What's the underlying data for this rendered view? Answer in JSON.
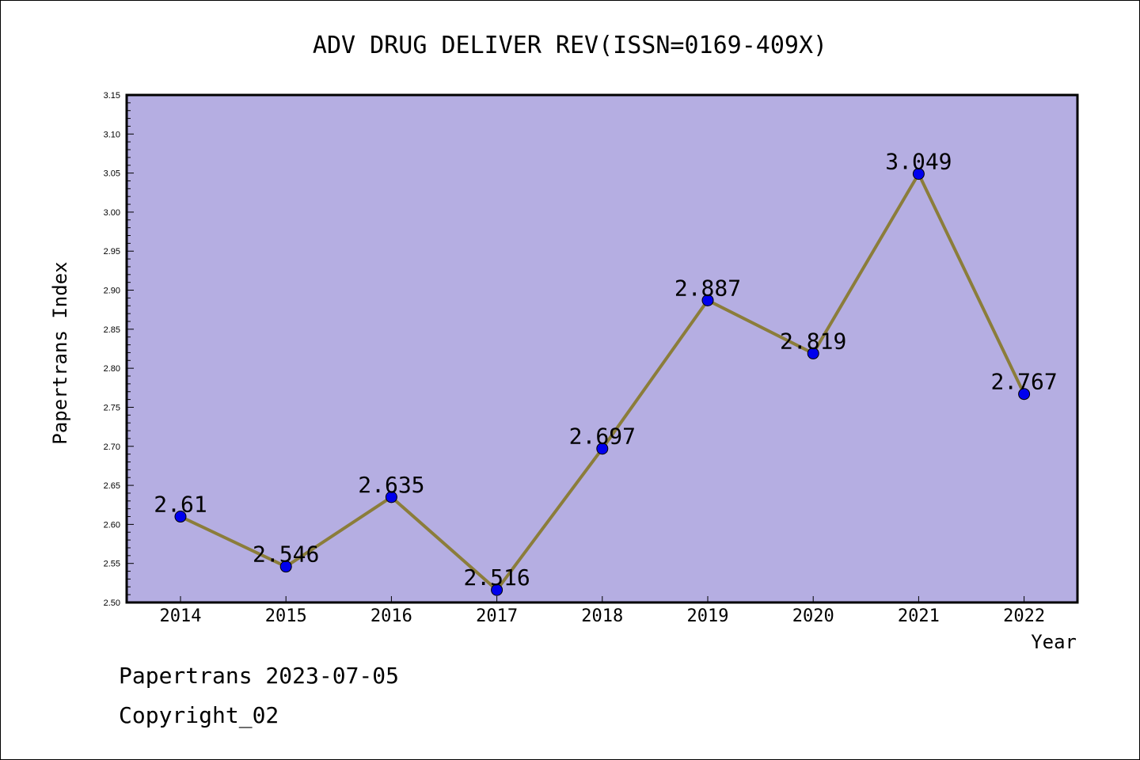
{
  "chart_data": {
    "type": "line",
    "title": "ADV DRUG DELIVER REV(ISSN=0169-409X)",
    "xlabel": "Year",
    "ylabel": "Papertrans Index",
    "categories": [
      "2014",
      "2015",
      "2016",
      "2017",
      "2018",
      "2019",
      "2020",
      "2021",
      "2022"
    ],
    "values": [
      2.61,
      2.546,
      2.635,
      2.516,
      2.697,
      2.887,
      2.819,
      3.049,
      2.767
    ],
    "data_labels": [
      "2.61",
      "2.546",
      "2.635",
      "2.516",
      "2.697",
      "2.887",
      "2.819",
      "3.049",
      "2.767"
    ],
    "ylim": [
      2.5,
      3.15
    ],
    "yticks": [
      "2.50",
      "2.55",
      "2.60",
      "2.65",
      "2.70",
      "2.75",
      "2.80",
      "2.85",
      "2.90",
      "2.95",
      "3.00",
      "3.05",
      "3.10",
      "3.15"
    ],
    "grid": false,
    "colors": {
      "plot_background": "#b5aee2",
      "line": "#8b7d3a",
      "marker": "#0000ee"
    }
  },
  "footer": {
    "line1": "Papertrans 2023-07-05",
    "line2": "Copyright_02"
  }
}
